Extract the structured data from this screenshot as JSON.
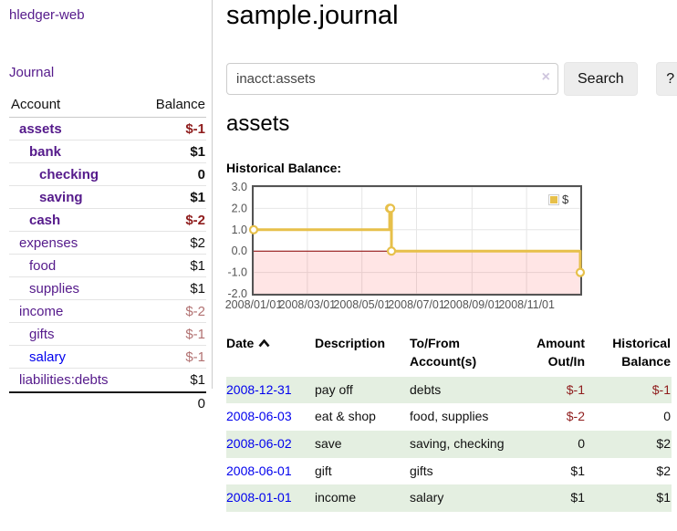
{
  "app": {
    "title": "hledger-web"
  },
  "colors": {
    "link_visited_purple": "#551A8B",
    "link_blue": "#0000EE",
    "negative_strong": "#8f1d1d",
    "negative_soft": "#b27272",
    "row_green": "#e4efe1",
    "chart_line_gold": "#E7C04A",
    "chart_zero_line": "#8b0000",
    "chart_negative_fill": "rgba(255,0,0,0.10)",
    "chart_border": "#545454",
    "chart_grid": "#e6e6e6"
  },
  "icons": {
    "clear_search": "×",
    "sort_ascending": "chevron-up",
    "legend_swatch": "gold-square"
  },
  "sidebar": {
    "journal_label": "Journal",
    "accounts": {
      "header_account": "Account",
      "header_balance": "Balance",
      "rows": [
        {
          "name": "assets",
          "balance": "$-1"
        },
        {
          "name": "bank",
          "balance": "$1"
        },
        {
          "name": "checking",
          "balance": "0"
        },
        {
          "name": "saving",
          "balance": "$1"
        },
        {
          "name": "cash",
          "balance": "$-2"
        },
        {
          "name": "expenses",
          "balance": "$2"
        },
        {
          "name": "food",
          "balance": "$1"
        },
        {
          "name": "supplies",
          "balance": "$1"
        },
        {
          "name": "income",
          "balance": "$-2"
        },
        {
          "name": "gifts",
          "balance": "$-1"
        },
        {
          "name": "salary",
          "balance": "$-1"
        },
        {
          "name": "liabilities:debts",
          "balance": "$1"
        }
      ],
      "total": "0"
    }
  },
  "main": {
    "title": "sample.journal",
    "search": {
      "value": "inacct:assets",
      "clear_icon": "×",
      "button_label": "Search",
      "help_label": "?"
    },
    "account_heading": "assets",
    "chart_label": "Historical Balance:"
  },
  "chart_data": {
    "type": "line",
    "style": "step",
    "title": "Historical Balance:",
    "series": [
      {
        "name": "$",
        "points": [
          {
            "date": "2008-01-01",
            "value": 1
          },
          {
            "date": "2008-06-01",
            "value": 2
          },
          {
            "date": "2008-06-02",
            "value": 2
          },
          {
            "date": "2008-06-03",
            "value": 0
          },
          {
            "date": "2008-12-31",
            "value": -1
          }
        ]
      }
    ],
    "x_range": [
      "2008-01-01",
      "2008-12-31"
    ],
    "x_ticks": [
      "2008/01/01",
      "2008/03/01",
      "2008/05/01",
      "2008/07/01",
      "2008/09/01",
      "2008/11/01"
    ],
    "y_ticks": [
      3.0,
      2.0,
      1.0,
      0.0,
      -1.0,
      -2.0
    ],
    "ylim": [
      -2,
      3
    ],
    "grid": true,
    "negative_region_shaded": true,
    "legend": {
      "label": "$",
      "position": "top-right"
    }
  },
  "register": {
    "headers": [
      {
        "label": "Date"
      },
      {
        "label": "Description"
      },
      {
        "label": "To/From Account(s)"
      },
      {
        "label": "Amount Out/In"
      },
      {
        "label": "Historical Balance"
      }
    ],
    "rows": [
      {
        "date": "2008-12-31",
        "description": "pay off",
        "accounts": "debts",
        "amount": "$-1",
        "balance": "$-1"
      },
      {
        "date": "2008-06-03",
        "description": "eat & shop",
        "accounts": "food, supplies",
        "amount": "$-2",
        "balance": "0"
      },
      {
        "date": "2008-06-02",
        "description": "save",
        "accounts": "saving, checking",
        "amount": "0",
        "balance": "$2"
      },
      {
        "date": "2008-06-01",
        "description": "gift",
        "accounts": "gifts",
        "amount": "$1",
        "balance": "$2"
      },
      {
        "date": "2008-01-01",
        "description": "income",
        "accounts": "salary",
        "amount": "$1",
        "balance": "$1"
      }
    ]
  }
}
